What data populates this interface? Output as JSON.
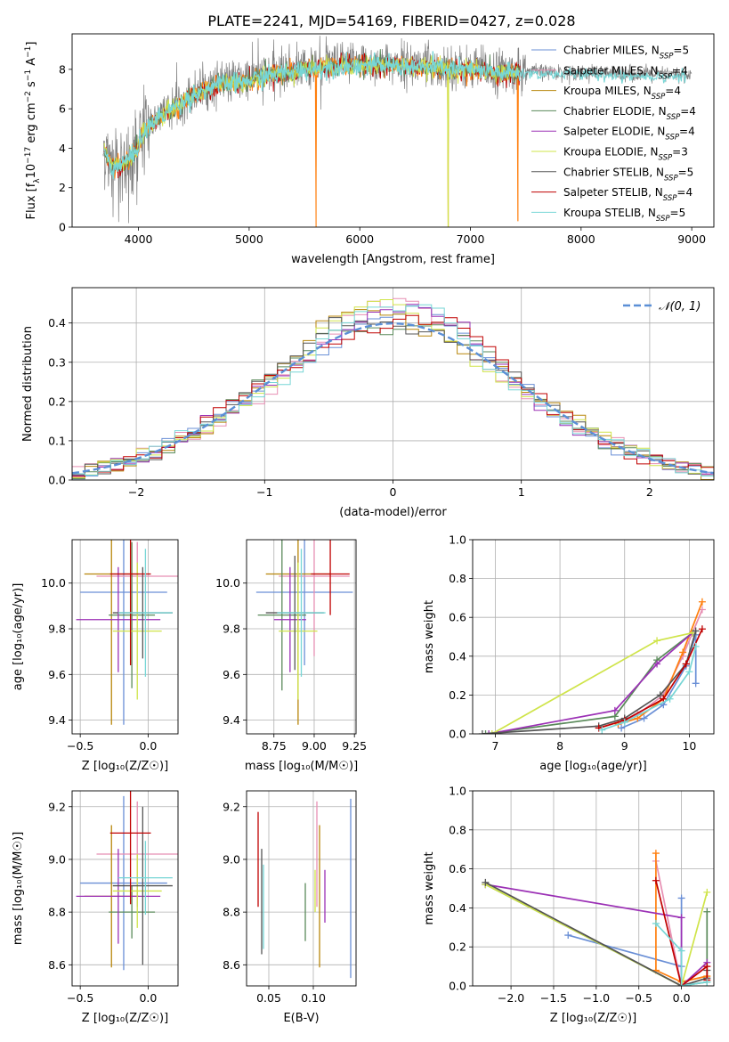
{
  "figure_title": "PLATE=2241, MJD=54169, FIBERID=0427, z=0.028",
  "colors": {
    "Chabrier MILES": "#6a8fd6",
    "Salpeter MILES": "#e78fb3",
    "Kroupa MILES": "#b8860b",
    "Chabrier ELODIE": "#5a8a5a",
    "Salpeter ELODIE": "#9b30b5",
    "Kroupa ELODIE": "#cfe44a",
    "Chabrier STELIB": "#555555",
    "Salpeter STELIB": "#c00000",
    "Kroupa STELIB": "#77d6d6",
    "orange": "#ff7f0e",
    "gaussian": "#5b8fd6"
  },
  "chart_data": [
    {
      "id": "spectrum",
      "type": "line",
      "title": "",
      "xlabel": "wavelength [Angstrom, rest frame]",
      "ylabel_parts": [
        "Flux [f",
        "λ",
        "10",
        "−17",
        " erg cm",
        "−2",
        " s",
        "−1",
        " A",
        "−1",
        "]"
      ],
      "xlim": [
        3400,
        9200
      ],
      "ylim": [
        0,
        9.8
      ],
      "xticks": [
        "4000",
        "5000",
        "6000",
        "7000",
        "8000",
        "9000"
      ],
      "xtick_values": [
        4000,
        5000,
        6000,
        7000,
        8000,
        9000
      ],
      "yticks": [
        "0",
        "2",
        "4",
        "6",
        "8"
      ],
      "ytick_values": [
        0,
        2,
        4,
        6,
        8
      ],
      "grid": false,
      "legend_position": "top-right",
      "legend": [
        {
          "name": "Chabrier MILES",
          "nssp": "5"
        },
        {
          "name": "Salpeter MILES",
          "nssp": "4"
        },
        {
          "name": "Kroupa MILES",
          "nssp": "4"
        },
        {
          "name": "Chabrier ELODIE",
          "nssp": "4"
        },
        {
          "name": "Salpeter ELODIE",
          "nssp": "4"
        },
        {
          "name": "Kroupa ELODIE",
          "nssp": "3"
        },
        {
          "name": "Chabrier STELIB",
          "nssp": "5"
        },
        {
          "name": "Salpeter STELIB",
          "nssp": "4"
        },
        {
          "name": "Kroupa STELIB",
          "nssp": "5"
        }
      ],
      "nssp_sub": "SSP",
      "nssp_prefix": ", N",
      "nssp_eq": "=",
      "continuum": [
        [
          3690,
          4.0
        ],
        [
          3750,
          3.1
        ],
        [
          3850,
          3.3
        ],
        [
          3950,
          3.7
        ],
        [
          4050,
          4.9
        ],
        [
          4150,
          5.5
        ],
        [
          4300,
          6.1
        ],
        [
          4500,
          6.8
        ],
        [
          4700,
          7.3
        ],
        [
          4900,
          7.4
        ],
        [
          5100,
          7.7
        ],
        [
          5300,
          7.9
        ],
        [
          5500,
          8.1
        ],
        [
          5700,
          8.2
        ],
        [
          5900,
          8.3
        ],
        [
          6100,
          8.3
        ],
        [
          6300,
          8.3
        ],
        [
          6500,
          8.2
        ],
        [
          6700,
          8.2
        ],
        [
          6900,
          8.1
        ],
        [
          7100,
          8.0
        ],
        [
          7300,
          7.9
        ],
        [
          7450,
          7.9
        ]
      ],
      "model_dips": [
        [
          5606,
          0
        ],
        [
          6800,
          0
        ],
        [
          7430,
          0.3
        ]
      ],
      "data_extent": [
        3680,
        9000
      ]
    },
    {
      "id": "residual_hist",
      "type": "histogram",
      "xlabel": "(data-model)/error",
      "ylabel": "Normed distribution",
      "xlim": [
        -2.5,
        2.5
      ],
      "ylim": [
        0,
        0.49
      ],
      "xticks": [
        "−2",
        "−1",
        "0",
        "1",
        "2"
      ],
      "xtick_values": [
        -2,
        -1,
        0,
        1,
        2
      ],
      "yticks": [
        "0.0",
        "0.1",
        "0.2",
        "0.3",
        "0.4"
      ],
      "ytick_values": [
        0,
        0.1,
        0.2,
        0.3,
        0.4
      ],
      "grid": true,
      "legend_position": "top-right",
      "legend": [
        "𝒩(0, 1)"
      ],
      "bin_width": 0.1,
      "reference_curve": "normal(0,1)"
    },
    {
      "id": "age_vs_Z",
      "type": "errorbar",
      "xlabel": "Z [log₁₀(Z/Z☉)]",
      "ylabel": "age  [log₁₀(age/yr)]",
      "xlim": [
        -0.56,
        0.22
      ],
      "ylim": [
        9.34,
        10.19
      ],
      "xticks": [
        "−0.5",
        "0.0"
      ],
      "xtick_values": [
        -0.5,
        0.0
      ],
      "yticks": [
        "9.4",
        "9.6",
        "9.8",
        "10.0"
      ],
      "ytick_values": [
        9.4,
        9.6,
        9.8,
        10.0
      ],
      "grid": true,
      "points": [
        {
          "model": "Chabrier MILES",
          "x": -0.18,
          "xerr": 0.32,
          "y": 9.96,
          "yerr": 0.58
        },
        {
          "model": "Salpeter MILES",
          "x": -0.08,
          "xerr": 0.3,
          "y": 10.03,
          "yerr": 0.15
        },
        {
          "model": "Kroupa MILES",
          "x": -0.27,
          "xerr": 0.2,
          "y": 10.04,
          "yerr": 0.66
        },
        {
          "model": "Chabrier ELODIE",
          "x": -0.12,
          "xerr": 0.17,
          "y": 9.86,
          "yerr": 0.32
        },
        {
          "model": "Salpeter ELODIE",
          "x": -0.22,
          "xerr": 0.31,
          "y": 9.84,
          "yerr": 0.23
        },
        {
          "model": "Kroupa ELODIE",
          "x": -0.08,
          "xerr": 0.18,
          "y": 9.79,
          "yerr": 0.3
        },
        {
          "model": "Chabrier STELIB",
          "x": -0.04,
          "xerr": 0.22,
          "y": 9.87,
          "yerr": 0.2
        },
        {
          "model": "Salpeter STELIB",
          "x": -0.13,
          "xerr": 0.15,
          "y": 10.04,
          "yerr": 0.4
        },
        {
          "model": "Kroupa STELIB",
          "x": -0.02,
          "xerr": 0.2,
          "y": 9.87,
          "yerr": 0.28
        }
      ]
    },
    {
      "id": "age_vs_mass",
      "type": "errorbar",
      "xlabel": "mass [log₁₀(M/M☉)]",
      "ylabel": "",
      "xlim": [
        8.58,
        9.26
      ],
      "ylim": [
        9.34,
        10.19
      ],
      "xticks": [
        "8.75",
        "9.00",
        "9.25"
      ],
      "xtick_values": [
        8.75,
        9.0,
        9.25
      ],
      "yticks": [
        "9.4",
        "9.6",
        "9.8",
        "10.0"
      ],
      "ytick_values": [
        9.4,
        9.6,
        9.8,
        10.0
      ],
      "grid": true,
      "points": [
        {
          "model": "Chabrier MILES",
          "x": 8.94,
          "xerr": 0.3,
          "y": 9.96,
          "yerr": 0.32
        },
        {
          "model": "Salpeter MILES",
          "x": 9.0,
          "xerr": 0.22,
          "y": 10.03,
          "yerr": 0.35
        },
        {
          "model": "Kroupa MILES",
          "x": 8.9,
          "xerr": 0.2,
          "y": 10.04,
          "yerr": 0.66
        },
        {
          "model": "Chabrier ELODIE",
          "x": 8.8,
          "xerr": 0.15,
          "y": 9.86,
          "yerr": 0.33
        },
        {
          "model": "Salpeter ELODIE",
          "x": 8.85,
          "xerr": 0.1,
          "y": 9.84,
          "yerr": 0.23
        },
        {
          "model": "Kroupa ELODIE",
          "x": 8.9,
          "xerr": 0.12,
          "y": 9.79,
          "yerr": 0.3
        },
        {
          "model": "Chabrier STELIB",
          "x": 8.88,
          "xerr": 0.18,
          "y": 9.87,
          "yerr": 0.25
        },
        {
          "model": "Salpeter STELIB",
          "x": 9.1,
          "xerr": 0.12,
          "y": 10.04,
          "yerr": 0.18
        },
        {
          "model": "Kroupa STELIB",
          "x": 8.92,
          "xerr": 0.15,
          "y": 9.87,
          "yerr": 0.28
        }
      ]
    },
    {
      "id": "massweight_vs_age",
      "type": "line",
      "xlabel": "age  [log₁₀(age/yr)]",
      "ylabel": "mass weight",
      "xlim": [
        6.65,
        10.38
      ],
      "ylim": [
        0,
        1.0
      ],
      "xticks": [
        "7",
        "8",
        "9",
        "10"
      ],
      "xtick_values": [
        7,
        8,
        9,
        10
      ],
      "yticks": [
        "0.0",
        "0.2",
        "0.4",
        "0.6",
        "0.8",
        "1.0"
      ],
      "ytick_values": [
        0,
        0.2,
        0.4,
        0.6,
        0.8,
        1.0
      ],
      "grid": true,
      "series": [
        {
          "model": "Chabrier MILES",
          "x": [
            8.95,
            9.3,
            9.6,
            9.95,
            10.1,
            10.1
          ],
          "y": [
            0.03,
            0.08,
            0.15,
            0.35,
            0.51,
            0.26
          ]
        },
        {
          "model": "Salpeter MILES",
          "x": [
            8.9,
            9.2,
            9.6,
            9.9,
            10.2
          ],
          "y": [
            0.05,
            0.1,
            0.2,
            0.4,
            0.64
          ]
        },
        {
          "model": "orange",
          "x": [
            8.9,
            9.2,
            9.6,
            9.9,
            10.2
          ],
          "y": [
            0.05,
            0.08,
            0.18,
            0.42,
            0.68
          ]
        },
        {
          "model": "Chabrier ELODIE",
          "x": [
            6.85,
            8.85,
            9.5,
            10.05
          ],
          "y": [
            0.0,
            0.09,
            0.38,
            0.52
          ]
        },
        {
          "model": "Salpeter ELODIE",
          "x": [
            6.9,
            8.85,
            9.5,
            10.05
          ],
          "y": [
            0.0,
            0.12,
            0.36,
            0.52
          ]
        },
        {
          "model": "Kroupa ELODIE",
          "x": [
            6.95,
            9.5,
            10.05
          ],
          "y": [
            0.0,
            0.48,
            0.52
          ]
        },
        {
          "model": "Chabrier STELIB",
          "x": [
            6.8,
            8.6,
            9.0,
            9.55,
            9.95,
            10.1
          ],
          "y": [
            0.0,
            0.04,
            0.08,
            0.2,
            0.36,
            0.53
          ]
        },
        {
          "model": "Salpeter STELIB",
          "x": [
            8.6,
            9.0,
            9.6,
            9.95,
            10.2
          ],
          "y": [
            0.03,
            0.07,
            0.18,
            0.36,
            0.54
          ]
        },
        {
          "model": "Kroupa STELIB",
          "x": [
            8.65,
            9.0,
            9.7,
            10.0,
            10.1
          ],
          "y": [
            0.02,
            0.06,
            0.18,
            0.32,
            0.45
          ]
        }
      ]
    },
    {
      "id": "mass_vs_Z",
      "type": "errorbar",
      "xlabel": "Z [log₁₀(Z/Z☉)]",
      "ylabel": "mass [log₁₀(M/M☉)]",
      "xlim": [
        -0.56,
        0.22
      ],
      "ylim": [
        8.52,
        9.26
      ],
      "xticks": [
        "−0.5",
        "0.0"
      ],
      "xtick_values": [
        -0.5,
        0.0
      ],
      "yticks": [
        "8.6",
        "8.8",
        "9.0",
        "9.2"
      ],
      "ytick_values": [
        8.6,
        8.8,
        9.0,
        9.2
      ],
      "grid": true,
      "points": [
        {
          "model": "Chabrier MILES",
          "x": -0.18,
          "xerr": 0.32,
          "y": 8.91,
          "yerr": 0.33
        },
        {
          "model": "Salpeter MILES",
          "x": -0.08,
          "xerr": 0.3,
          "y": 9.02,
          "yerr": 0.2
        },
        {
          "model": "Kroupa MILES",
          "x": -0.27,
          "xerr": 0.2,
          "y": 8.86,
          "yerr": 0.27
        },
        {
          "model": "Chabrier ELODIE",
          "x": -0.12,
          "xerr": 0.17,
          "y": 8.8,
          "yerr": 0.1
        },
        {
          "model": "Salpeter ELODIE",
          "x": -0.22,
          "xerr": 0.31,
          "y": 8.86,
          "yerr": 0.18
        },
        {
          "model": "Kroupa ELODIE",
          "x": -0.08,
          "xerr": 0.18,
          "y": 8.88,
          "yerr": 0.14
        },
        {
          "model": "Chabrier STELIB",
          "x": -0.04,
          "xerr": 0.22,
          "y": 8.9,
          "yerr": 0.3
        },
        {
          "model": "Salpeter STELIB",
          "x": -0.13,
          "xerr": 0.15,
          "y": 9.1,
          "yerr": 0.27
        },
        {
          "model": "Kroupa STELIB",
          "x": -0.02,
          "xerr": 0.2,
          "y": 8.93,
          "yerr": 0.14
        }
      ]
    },
    {
      "id": "mass_vs_ebv",
      "type": "errorbar",
      "xlabel": "E(B-V)",
      "ylabel": "",
      "xlim": [
        0.025,
        0.148
      ],
      "ylim": [
        8.52,
        9.26
      ],
      "xticks": [
        "0.05",
        "0.10"
      ],
      "xtick_values": [
        0.05,
        0.1
      ],
      "yticks": [
        "8.6",
        "8.8",
        "9.0",
        "9.2"
      ],
      "ytick_values": [
        8.6,
        8.8,
        9.0,
        9.2
      ],
      "grid": true,
      "points": [
        {
          "model": "Chabrier MILES",
          "x": 0.142,
          "y": 8.89,
          "yerr": 0.34
        },
        {
          "model": "Salpeter MILES",
          "x": 0.104,
          "y": 9.02,
          "yerr": 0.2
        },
        {
          "model": "Kroupa MILES",
          "x": 0.107,
          "y": 8.86,
          "yerr": 0.27
        },
        {
          "model": "Chabrier ELODIE",
          "x": 0.091,
          "y": 8.8,
          "yerr": 0.11
        },
        {
          "model": "Salpeter ELODIE",
          "x": 0.113,
          "y": 8.86,
          "yerr": 0.1
        },
        {
          "model": "Kroupa ELODIE",
          "x": 0.102,
          "y": 8.88,
          "yerr": 0.08
        },
        {
          "model": "Chabrier STELIB",
          "x": 0.042,
          "y": 8.84,
          "yerr": 0.2
        },
        {
          "model": "Salpeter STELIB",
          "x": 0.038,
          "y": 9.0,
          "yerr": 0.18
        },
        {
          "model": "Kroupa STELIB",
          "x": 0.044,
          "y": 8.82,
          "yerr": 0.16
        }
      ]
    },
    {
      "id": "massweight_vs_Z",
      "type": "line",
      "xlabel": "Z [log₁₀(Z/Z☉)]",
      "ylabel": "mass weight",
      "xlim": [
        -2.45,
        0.38
      ],
      "ylim": [
        0,
        1.0
      ],
      "xticks": [
        "−2.0",
        "−1.5",
        "−1.0",
        "−0.5",
        "0.0"
      ],
      "xtick_values": [
        -2.0,
        -1.5,
        -1.0,
        -0.5,
        0.0
      ],
      "yticks": [
        "0.0",
        "0.2",
        "0.4",
        "0.6",
        "0.8",
        "1.0"
      ],
      "ytick_values": [
        0,
        0.2,
        0.4,
        0.6,
        0.8,
        1.0
      ],
      "grid": true,
      "series": [
        {
          "model": "Chabrier MILES",
          "x": [
            -1.33,
            0.0,
            0.0,
            0.0
          ],
          "y": [
            0.26,
            0.1,
            0.45,
            0.0
          ]
        },
        {
          "model": "Salpeter MILES",
          "x": [
            -0.3,
            0.0,
            0.3
          ],
          "y": [
            0.64,
            0.0,
            0.1
          ]
        },
        {
          "model": "orange",
          "x": [
            -0.3,
            -0.3,
            0.0,
            0.3
          ],
          "y": [
            0.68,
            0.08,
            0.02,
            0.05
          ]
        },
        {
          "model": "Chabrier ELODIE",
          "x": [
            -2.3,
            0.0,
            0.3,
            0.3
          ],
          "y": [
            0.52,
            0.0,
            0.02,
            0.38
          ]
        },
        {
          "model": "Salpeter ELODIE",
          "x": [
            -2.3,
            0.0,
            0.0,
            0.3
          ],
          "y": [
            0.52,
            0.35,
            0.0,
            0.12
          ]
        },
        {
          "model": "Kroupa ELODIE",
          "x": [
            -2.3,
            0.0,
            0.3
          ],
          "y": [
            0.52,
            0.0,
            0.48
          ]
        },
        {
          "model": "Chabrier STELIB",
          "x": [
            -2.3,
            0.0,
            0.3,
            0.3
          ],
          "y": [
            0.53,
            0.0,
            0.04,
            0.08
          ]
        },
        {
          "model": "Salpeter STELIB",
          "x": [
            -0.3,
            0.0,
            0.3,
            0.3
          ],
          "y": [
            0.54,
            0.0,
            0.1,
            0.03
          ]
        },
        {
          "model": "Kroupa STELIB",
          "x": [
            -0.3,
            0.0,
            0.0,
            0.3
          ],
          "y": [
            0.32,
            0.18,
            0.0,
            0.02
          ]
        }
      ]
    }
  ]
}
